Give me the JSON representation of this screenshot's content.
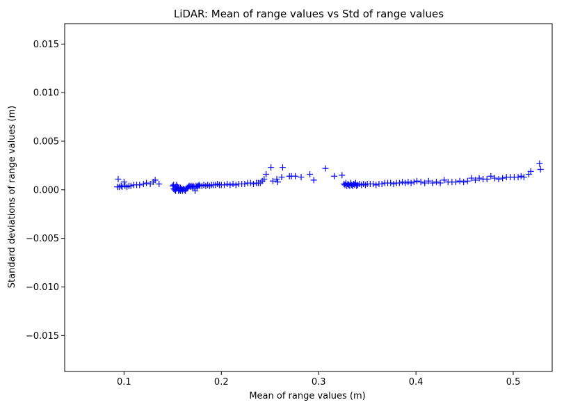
{
  "chart_data": {
    "type": "scatter",
    "title": "LiDAR: Mean of range values vs Std of range values",
    "xlabel": "Mean of range values (m)",
    "ylabel": "Standard deviations of range values (m)",
    "xlim": [
      0.039,
      0.54
    ],
    "ylim": [
      -0.0187,
      0.0171
    ],
    "xticks": [
      0.1,
      0.2,
      0.3,
      0.4,
      0.5
    ],
    "xtick_labels": [
      "0.1",
      "0.2",
      "0.3",
      "0.4",
      "0.5"
    ],
    "yticks": [
      -0.015,
      -0.01,
      -0.005,
      0.0,
      0.005,
      0.01,
      0.015
    ],
    "ytick_labels": [
      "−0.015",
      "−0.010",
      "−0.005",
      "0.000",
      "0.005",
      "0.010",
      "0.015"
    ],
    "grid": false,
    "marker": "+",
    "color": "#0000ff",
    "series": [
      {
        "x": [
          0.093,
          0.094,
          0.095,
          0.097,
          0.098,
          0.1,
          0.101,
          0.103,
          0.105,
          0.107,
          0.11,
          0.113,
          0.116,
          0.12,
          0.123,
          0.127,
          0.13,
          0.132,
          0.136,
          0.15,
          0.151,
          0.151,
          0.152,
          0.153,
          0.153,
          0.154,
          0.154,
          0.155,
          0.156,
          0.156,
          0.157,
          0.158,
          0.158,
          0.159,
          0.16,
          0.16,
          0.161,
          0.162,
          0.163,
          0.164,
          0.165,
          0.166,
          0.167,
          0.168,
          0.169,
          0.17,
          0.171,
          0.172,
          0.173,
          0.174,
          0.175,
          0.176,
          0.177,
          0.178,
          0.18,
          0.182,
          0.184,
          0.186,
          0.188,
          0.19,
          0.192,
          0.194,
          0.196,
          0.198,
          0.2,
          0.203,
          0.206,
          0.209,
          0.212,
          0.215,
          0.218,
          0.221,
          0.224,
          0.227,
          0.23,
          0.233,
          0.236,
          0.238,
          0.24,
          0.242,
          0.244,
          0.246,
          0.251,
          0.253,
          0.257,
          0.258,
          0.262,
          0.263,
          0.27,
          0.272,
          0.276,
          0.282,
          0.291,
          0.295,
          0.307,
          0.316,
          0.324,
          0.326,
          0.327,
          0.328,
          0.329,
          0.33,
          0.331,
          0.332,
          0.333,
          0.334,
          0.335,
          0.336,
          0.337,
          0.338,
          0.339,
          0.34,
          0.342,
          0.344,
          0.346,
          0.348,
          0.35,
          0.353,
          0.356,
          0.359,
          0.362,
          0.365,
          0.368,
          0.371,
          0.374,
          0.377,
          0.38,
          0.383,
          0.386,
          0.389,
          0.392,
          0.395,
          0.398,
          0.401,
          0.405,
          0.409,
          0.413,
          0.417,
          0.421,
          0.425,
          0.429,
          0.433,
          0.437,
          0.441,
          0.445,
          0.449,
          0.453,
          0.457,
          0.461,
          0.465,
          0.469,
          0.473,
          0.477,
          0.481,
          0.485,
          0.489,
          0.493,
          0.497,
          0.501,
          0.505,
          0.508,
          0.511,
          0.516,
          0.518,
          0.527,
          0.528
        ],
        "y": [
          0.0003,
          0.0011,
          0.0003,
          0.0004,
          0.0003,
          0.0008,
          0.0004,
          0.0003,
          0.0004,
          0.0004,
          0.0005,
          0.0005,
          0.0005,
          0.0006,
          0.0007,
          0.0006,
          0.0008,
          0.001,
          0.0006,
          0.0004,
          0.0001,
          0.0005,
          0.0,
          0.0003,
          -0.0001,
          0.0005,
          0.0001,
          0.0003,
          -0.0001,
          0.0002,
          0.0,
          0.0002,
          -0.0001,
          0.0001,
          0.0,
          -0.0001,
          0.0001,
          0.0,
          -0.0001,
          0.0001,
          0.0002,
          0.0003,
          0.0004,
          0.0003,
          0.0004,
          0.0003,
          0.0004,
          0.0003,
          -0.0001,
          0.0004,
          0.0003,
          0.0004,
          0.0005,
          0.0004,
          0.0004,
          0.0005,
          0.0004,
          0.0005,
          0.0004,
          0.0005,
          0.0005,
          0.0005,
          0.0006,
          0.0005,
          0.0005,
          0.0005,
          0.0006,
          0.0005,
          0.0006,
          0.0005,
          0.0006,
          0.0006,
          0.0006,
          0.0007,
          0.0007,
          0.0006,
          0.0007,
          0.0007,
          0.0007,
          0.0009,
          0.0011,
          0.0016,
          0.0023,
          0.0009,
          0.0011,
          0.0008,
          0.0013,
          0.0023,
          0.0014,
          0.0014,
          0.0014,
          0.0013,
          0.0016,
          0.001,
          0.0022,
          0.0014,
          0.0015,
          0.0006,
          0.0005,
          0.0007,
          0.0004,
          0.0006,
          0.0005,
          0.0004,
          0.0007,
          0.0005,
          0.0004,
          0.0006,
          0.0005,
          0.0007,
          0.0004,
          0.0005,
          0.0006,
          0.0005,
          0.0006,
          0.0005,
          0.0006,
          0.0006,
          0.0006,
          0.0005,
          0.0006,
          0.0006,
          0.0007,
          0.0007,
          0.0007,
          0.0006,
          0.0007,
          0.0007,
          0.0008,
          0.0007,
          0.0008,
          0.0007,
          0.0008,
          0.0009,
          0.0008,
          0.0007,
          0.0009,
          0.0007,
          0.0008,
          0.0007,
          0.001,
          0.0008,
          0.0008,
          0.0008,
          0.0009,
          0.0008,
          0.0009,
          0.0012,
          0.001,
          0.0012,
          0.0011,
          0.0011,
          0.0014,
          0.0012,
          0.0011,
          0.0012,
          0.0013,
          0.0013,
          0.0013,
          0.0013,
          0.0014,
          0.0013,
          0.0016,
          0.0019,
          0.0027,
          0.0021
        ]
      }
    ]
  }
}
